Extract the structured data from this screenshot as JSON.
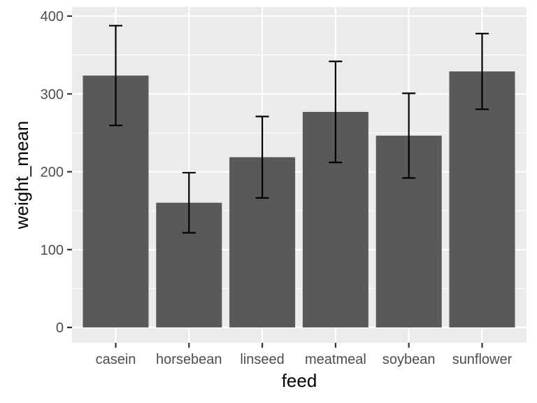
{
  "chart_data": {
    "type": "bar",
    "title": "",
    "xlabel": "feed",
    "ylabel": "weight_mean",
    "categories": [
      "casein",
      "horsebean",
      "linseed",
      "meatmeal",
      "soybean",
      "sunflower"
    ],
    "values": [
      323.6,
      160.2,
      218.7,
      276.9,
      246.4,
      328.9
    ],
    "error_low": [
      259.5,
      121.6,
      166.4,
      212.0,
      192.0,
      280.3
    ],
    "error_high": [
      387.7,
      198.8,
      271.0,
      341.8,
      300.8,
      377.5
    ],
    "ylim": [
      0,
      415
    ],
    "yticks": [
      0,
      100,
      200,
      300,
      400
    ],
    "grid": true,
    "colors": {
      "panel": "#ebebeb",
      "grid": "#ffffff",
      "bar": "#595959",
      "errorbar": "#000000",
      "tick": "#333333"
    }
  }
}
